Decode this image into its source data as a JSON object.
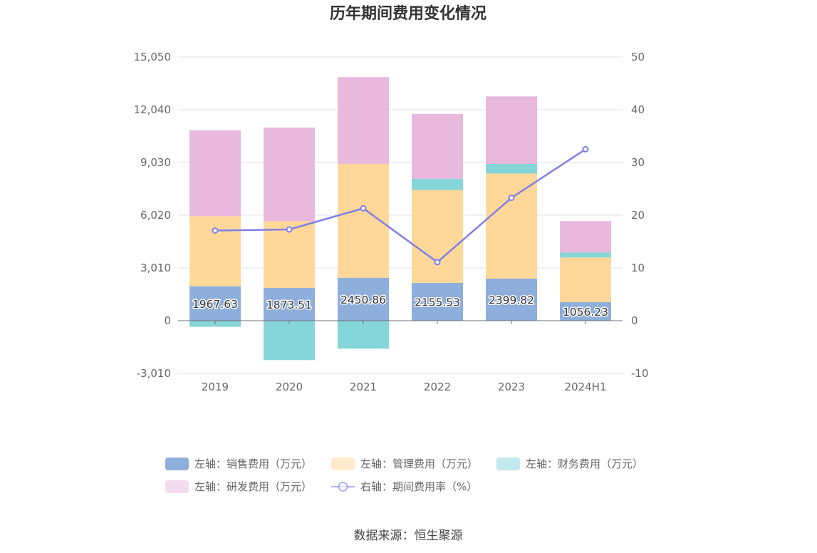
{
  "chart_data": {
    "type": "bar",
    "title": "历年期间费用变化情况",
    "categories": [
      "2019",
      "2020",
      "2021",
      "2022",
      "2023",
      "2024H1"
    ],
    "stacked": true,
    "left_axis": {
      "min": -3010,
      "max": 15050,
      "ticks": [
        "-3,010",
        "0",
        "3,010",
        "6,020",
        "9,030",
        "12,040",
        "15,050"
      ],
      "tick_values": [
        -3010,
        0,
        3010,
        6020,
        9030,
        12040,
        15050
      ]
    },
    "right_axis": {
      "min": -10,
      "max": 50,
      "ticks": [
        "-10",
        "0",
        "10",
        "20",
        "30",
        "40",
        "50"
      ],
      "tick_values": [
        -10,
        0,
        10,
        20,
        30,
        40,
        50
      ]
    },
    "series": [
      {
        "name": "左轴：销售费用（万元）",
        "axis": "left",
        "type": "bar",
        "color": "#8eaedc",
        "values": [
          1967.63,
          1873.51,
          2450.86,
          2155.53,
          2399.82,
          1056.23
        ],
        "labels": [
          "1967.63",
          "1873.51",
          "2450.86",
          "2155.53",
          "2399.82",
          "1056.23"
        ]
      },
      {
        "name": "左轴：管理费用（万元）",
        "axis": "left",
        "type": "bar",
        "color": "#ffd899",
        "values": [
          4000,
          3800,
          6500,
          5300,
          6000,
          2550
        ]
      },
      {
        "name": "左轴：财务费用（万元）",
        "axis": "left",
        "type": "bar",
        "color": "#86d5d9",
        "values": [
          -350,
          -2250,
          -1600,
          650,
          550,
          280
        ]
      },
      {
        "name": "左轴：研发费用（万元）",
        "axis": "left",
        "type": "bar",
        "color": "#e8b9dc",
        "values": [
          4900,
          5350,
          4950,
          3700,
          3850,
          1800
        ]
      },
      {
        "name": "右轴：期间费用率（%）",
        "axis": "right",
        "type": "line",
        "color": "#7f7fe6",
        "values": [
          17.1,
          17.3,
          21.3,
          11.1,
          23.3,
          32.5
        ]
      }
    ],
    "legend_position": "bottom",
    "grid": true
  },
  "source": "数据来源：恒生聚源"
}
